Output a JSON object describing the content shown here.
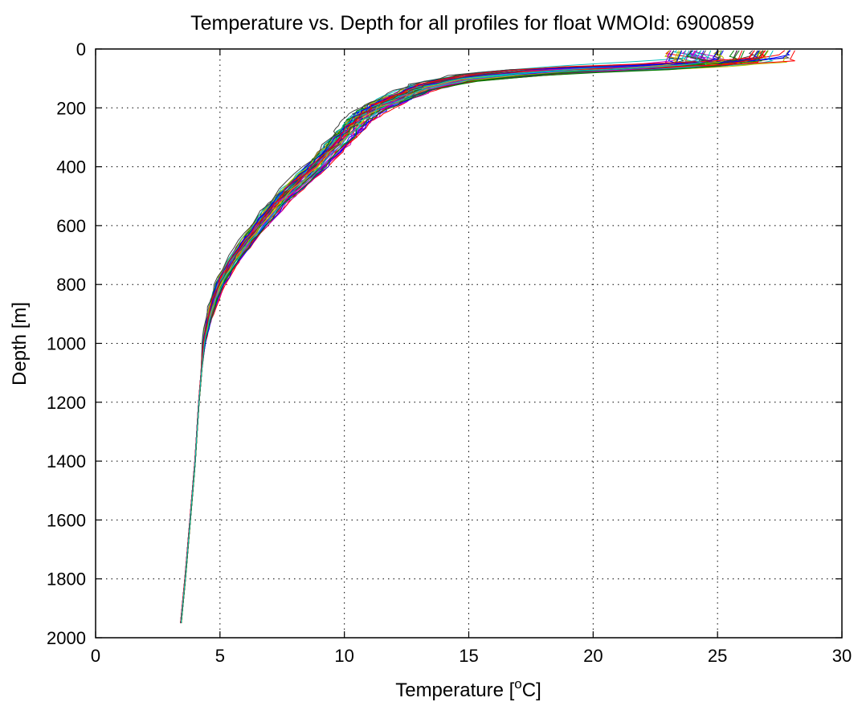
{
  "chart_data": {
    "type": "line",
    "title": "Temperature vs. Depth for all profiles for float WMOId: 6900859",
    "xlabel": {
      "prefix": "Temperature [",
      "superscript": "o",
      "suffix": "C]"
    },
    "ylabel": "Depth [m]",
    "xlim": [
      0,
      30
    ],
    "ylim": [
      0,
      2000
    ],
    "y_reversed": true,
    "grid": true,
    "grid_style": "dotted",
    "legend": "none",
    "x_ticks": [
      0,
      5,
      10,
      15,
      20,
      25,
      30
    ],
    "y_ticks": [
      0,
      200,
      400,
      600,
      800,
      1000,
      1200,
      1400,
      1600,
      1800,
      2000
    ],
    "x_tick_labels": [
      "0",
      "5",
      "10",
      "15",
      "20",
      "25",
      "30"
    ],
    "y_tick_labels": [
      "0",
      "200",
      "400",
      "600",
      "800",
      "1000",
      "1200",
      "1400",
      "1600",
      "1800",
      "2000"
    ],
    "series_count": 60,
    "series_colors": [
      "#0000ff",
      "#008000",
      "#ff0000",
      "#00bfbf",
      "#bf00bf",
      "#bfbf00",
      "#404040"
    ],
    "typical_profile": {
      "depth": [
        5,
        20,
        40,
        60,
        80,
        100,
        130,
        160,
        200,
        250,
        300,
        400,
        500,
        600,
        700,
        800,
        900,
        1000,
        1200,
        1400,
        1600,
        1800,
        1975
      ],
      "temperature": [
        26.0,
        25.9,
        25.0,
        21.0,
        17.5,
        15.0,
        13.3,
        12.4,
        11.3,
        10.5,
        10.0,
        8.9,
        7.6,
        6.6,
        5.7,
        5.0,
        4.6,
        4.35,
        4.15,
        4.0,
        3.8,
        3.6,
        3.4
      ]
    }
  }
}
